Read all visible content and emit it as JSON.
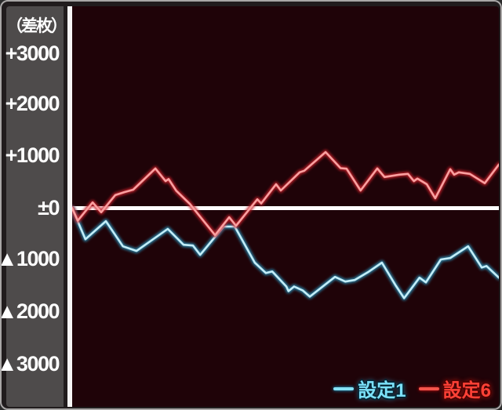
{
  "colors": {
    "frame_border": "#a9a6a6",
    "frame_bg": "#211c1d",
    "sidebar_bg": "#4e4b4b",
    "plot_bg": "#1f0308",
    "axis_line": "#ffffff",
    "series1_core": "#c3edf8",
    "series1_halo": "#2b87ab",
    "series6_core": "#f9a0a0",
    "series6_halo": "#c2202a"
  },
  "y_axis": {
    "unit_label": "（差枚）",
    "ticks": [
      {
        "label": "+3000",
        "value": 3000
      },
      {
        "label": "+2000",
        "value": 2000
      },
      {
        "label": "+1000",
        "value": 1000
      },
      {
        "label": "±0",
        "value": 0
      },
      {
        "label": "▲1000",
        "value": -1000
      },
      {
        "label": "▲2000",
        "value": -2000
      },
      {
        "label": "▲3000",
        "value": -3000
      }
    ]
  },
  "legend": {
    "items": [
      {
        "label": "設定1",
        "color": "#7be1f9"
      },
      {
        "label": "設定6",
        "color": "#ff4136"
      }
    ]
  },
  "chart_data": {
    "type": "line",
    "title": "差枚スランプグラフ（設定1 vs 設定6）",
    "xlabel": "",
    "ylabel": "差枚",
    "ylim": [
      -3800,
      3900
    ],
    "yticks": [
      3000,
      2000,
      1000,
      0,
      -1000,
      -2000,
      -3000
    ],
    "grid": false,
    "legend_position": "bottom-right",
    "x_unit": "percent_of_range",
    "series": [
      {
        "name": "設定1",
        "color": "#c3edf8",
        "halo_color": "#2b87ab",
        "points": [
          [
            0,
            0
          ],
          [
            3.1,
            -600
          ],
          [
            7.9,
            -250
          ],
          [
            11.9,
            -735
          ],
          [
            15.1,
            -825
          ],
          [
            22.4,
            -400
          ],
          [
            26.1,
            -705
          ],
          [
            28.3,
            -720
          ],
          [
            30.0,
            -900
          ],
          [
            35.5,
            -355
          ],
          [
            38.1,
            -355
          ],
          [
            42.8,
            -1050
          ],
          [
            45.4,
            -1250
          ],
          [
            46.9,
            -1220
          ],
          [
            50.2,
            -1510
          ],
          [
            50.7,
            -1600
          ],
          [
            52.0,
            -1510
          ],
          [
            54.0,
            -1585
          ],
          [
            55.7,
            -1705
          ],
          [
            61.6,
            -1325
          ],
          [
            64.0,
            -1415
          ],
          [
            66.2,
            -1385
          ],
          [
            69.3,
            -1235
          ],
          [
            72.6,
            -1050
          ],
          [
            75.7,
            -1475
          ],
          [
            77.8,
            -1735
          ],
          [
            81.4,
            -1340
          ],
          [
            82.9,
            -1430
          ],
          [
            86.4,
            -990
          ],
          [
            88.6,
            -960
          ],
          [
            92.8,
            -735
          ],
          [
            96.0,
            -1145
          ],
          [
            97.1,
            -1115
          ],
          [
            100,
            -1340
          ]
        ]
      },
      {
        "name": "設定6",
        "color": "#f9a0a0",
        "halo_color": "#c2202a",
        "points": [
          [
            0,
            0
          ],
          [
            1.3,
            -240
          ],
          [
            4.8,
            110
          ],
          [
            6.8,
            -80
          ],
          [
            10.1,
            250
          ],
          [
            12.3,
            310
          ],
          [
            14.3,
            355
          ],
          [
            19.5,
            765
          ],
          [
            21.9,
            520
          ],
          [
            22.6,
            560
          ],
          [
            24.4,
            335
          ],
          [
            27.6,
            80
          ],
          [
            33.5,
            -520
          ],
          [
            36.8,
            -175
          ],
          [
            38.4,
            -340
          ],
          [
            43.4,
            170
          ],
          [
            44.3,
            90
          ],
          [
            47.8,
            460
          ],
          [
            48.9,
            340
          ],
          [
            53.3,
            690
          ],
          [
            54.4,
            720
          ],
          [
            59.4,
            1080
          ],
          [
            62.9,
            770
          ],
          [
            64.3,
            760
          ],
          [
            67.6,
            340
          ],
          [
            71.5,
            765
          ],
          [
            73.2,
            600
          ],
          [
            76.7,
            645
          ],
          [
            78.7,
            660
          ],
          [
            80.1,
            520
          ],
          [
            80.9,
            570
          ],
          [
            83.1,
            460
          ],
          [
            85.1,
            190
          ],
          [
            88.6,
            750
          ],
          [
            89.5,
            645
          ],
          [
            90.6,
            690
          ],
          [
            93.2,
            660
          ],
          [
            96.7,
            480
          ],
          [
            100,
            840
          ]
        ]
      }
    ]
  }
}
